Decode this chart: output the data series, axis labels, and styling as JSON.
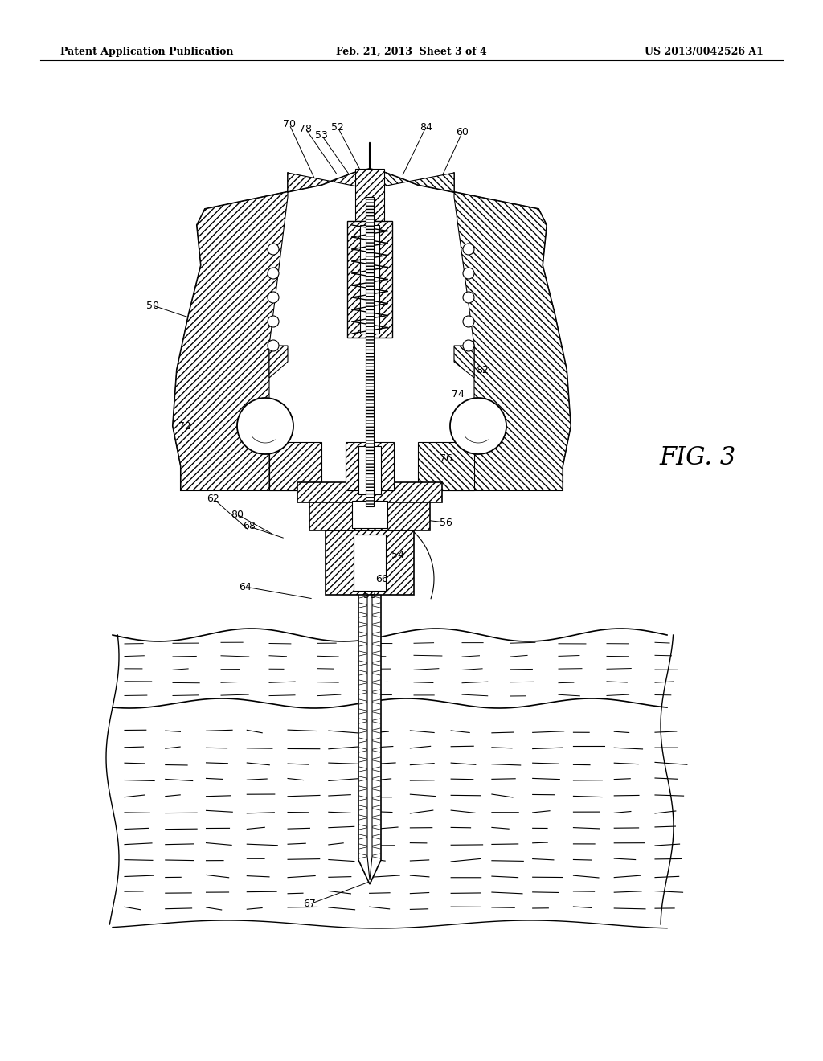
{
  "header_left": "Patent Application Publication",
  "header_middle": "Feb. 21, 2013  Sheet 3 of 4",
  "header_right": "US 2013/0042526 A1",
  "fig_label": "FIG. 3",
  "bg": "#ffffff"
}
